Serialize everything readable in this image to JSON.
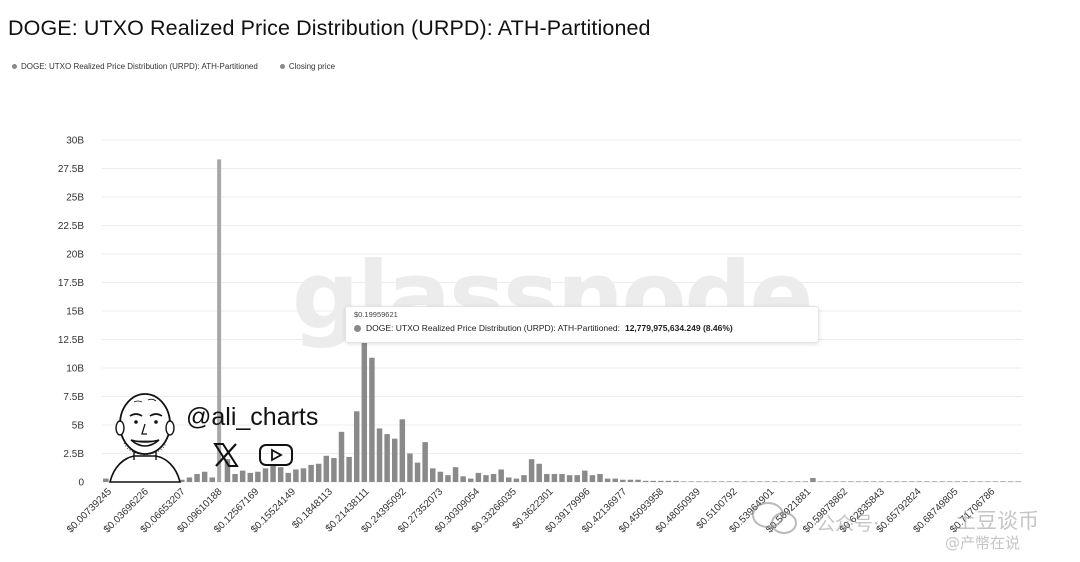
{
  "title": "DOGE: UTXO Realized Price Distribution (URPD): ATH-Partitioned",
  "legend": {
    "series_label": "DOGE: UTXO Realized Price Distribution (URPD): ATH-Partitioned",
    "closing_label": "Closing price"
  },
  "tooltip": {
    "price": "$0.19959621",
    "label": "DOGE: UTXO Realized Price Distribution (URPD): ATH-Partitioned:",
    "value": "12,779,975,634.249 (8.46%)"
  },
  "watermark": "glassnode",
  "author": {
    "handle": "@ali_charts",
    "icons": [
      "x-logo-icon",
      "youtube-icon"
    ]
  },
  "overlay_watermark": {
    "left": "公众号·",
    "right": "土豆谈币",
    "bottom": "@产幣在说"
  },
  "colors": {
    "bar": "#8a8a8a",
    "closing_bar": "#a8a8a8",
    "grid": "#ececec"
  },
  "chart_data": {
    "type": "bar",
    "title": "DOGE: UTXO Realized Price Distribution (URPD): ATH-Partitioned",
    "y_unit": "B",
    "ylim": [
      0,
      30
    ],
    "yticks": [
      "0",
      "2.5B",
      "5B",
      "7.5B",
      "10B",
      "12.5B",
      "15B",
      "17.5B",
      "20B",
      "22.5B",
      "25B",
      "27.5B",
      "30B"
    ],
    "xticks": [
      "$0.00739245",
      "$0.03696226",
      "$0.06653207",
      "$0.09610188",
      "$0.12567169",
      "$0.15524149",
      "$0.1848113",
      "$0.21438111",
      "$0.24395092",
      "$0.27352073",
      "$0.30309054",
      "$0.33266035",
      "$0.3622301",
      "$0.39179996",
      "$0.42136977",
      "$0.45093958",
      "$0.48050939",
      "$0.5100792",
      "$0.53964901",
      "$0.56921881",
      "$0.59878862",
      "$0.62835843",
      "$0.65792824",
      "$0.68749805",
      "$0.71706786"
    ],
    "series": [
      {
        "name": "DOGE: UTXO Realized Price Distribution (URPD): ATH-Partitioned",
        "values": [
          0.3,
          0.4,
          0.2,
          0.3,
          0.1,
          0.4,
          0.2,
          0.5,
          0.3,
          0.6,
          0.2,
          0.4,
          0.7,
          0.9,
          0.4,
          28.3,
          2.0,
          0.7,
          1.0,
          0.8,
          0.9,
          1.2,
          1.4,
          1.3,
          0.8,
          1.1,
          1.2,
          1.5,
          1.6,
          2.3,
          2.1,
          4.4,
          2.2,
          6.2,
          12.78,
          10.9,
          4.7,
          4.2,
          3.8,
          5.5,
          2.5,
          1.7,
          3.5,
          1.2,
          0.9,
          0.6,
          1.3,
          0.5,
          0.3,
          0.8,
          0.6,
          0.7,
          1.1,
          0.4,
          0.3,
          0.6,
          2.0,
          1.6,
          0.7,
          0.7,
          0.7,
          0.6,
          0.6,
          1.0,
          0.6,
          0.7,
          0.3,
          0.3,
          0.2,
          0.2,
          0.2,
          0.1,
          0.1,
          0.1,
          0.1,
          0.1,
          0.05,
          0.05,
          0.05,
          0.05,
          0.05,
          0.05,
          0.05,
          0.05,
          0.05,
          0.05,
          0.05,
          0.05,
          0.05,
          0.05,
          0.05,
          0.05,
          0.05,
          0.35,
          0.05,
          0.05,
          0.05,
          0.05,
          0.05,
          0.05,
          0.05,
          0.05,
          0.05,
          0.05,
          0.05,
          0.05,
          0.05,
          0.05,
          0.05,
          0.05,
          0.05,
          0.05,
          0.05,
          0.05,
          0.05,
          0.05,
          0.05,
          0.05,
          0.05,
          0.05,
          0.05
        ]
      }
    ],
    "closing_price_index": 15,
    "highlight_index": 34,
    "grid": true,
    "legend_position": "top-left"
  }
}
